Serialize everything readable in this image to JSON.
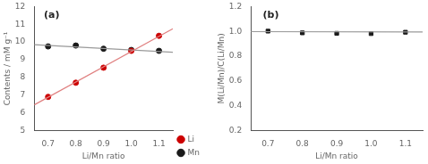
{
  "chart_data": [
    {
      "type": "scatter",
      "annotations": [
        "(a)"
      ],
      "xlabel": "Li/Mn ratio",
      "ylabel": "Contents / mM g⁻¹",
      "xlim": [
        0.65,
        1.15
      ],
      "xticks": [
        0.7,
        0.8,
        0.9,
        {
          "value": 1.0,
          "label": "1.0"
        },
        1.1
      ],
      "ylim": [
        5,
        12
      ],
      "yticks": [
        5,
        6,
        7,
        8,
        9,
        10,
        11,
        12
      ],
      "grid": false,
      "legend": "lower right",
      "series": [
        {
          "type": "line",
          "color": "#e08080",
          "x": [
            0.65,
            1.15
          ],
          "values": [
            6.45,
            10.75
          ]
        },
        {
          "type": "line",
          "color": "#999999",
          "x": [
            0.65,
            1.15
          ],
          "values": [
            9.85,
            9.42
          ]
        },
        {
          "name": "Li",
          "type": "scatter",
          "marker": "circle",
          "color": "#cc0000",
          "x": [
            0.7,
            0.8,
            0.9,
            1.0,
            1.1
          ],
          "values": [
            6.9,
            7.7,
            8.55,
            9.5,
            10.35
          ]
        },
        {
          "name": "Mn",
          "type": "scatter",
          "marker": "circle",
          "color": "#1a1a1a",
          "x": [
            0.7,
            0.8,
            0.9,
            1.0,
            1.1
          ],
          "values": [
            9.75,
            9.8,
            9.62,
            9.55,
            9.5
          ]
        }
      ]
    },
    {
      "type": "scatter",
      "annotations": [
        "(b)"
      ],
      "xlabel": "Li/Mn ratio",
      "ylabel": "M(Li/Mn)/C(Li/Mn)",
      "xlim": [
        0.65,
        1.15
      ],
      "xticks": [
        0.7,
        0.8,
        0.9,
        {
          "value": 1.0,
          "label": "1.0"
        },
        1.1
      ],
      "ylim": [
        0.2,
        1.2
      ],
      "yticks": [
        0.2,
        0.4,
        0.6,
        0.8,
        {
          "value": 1.0,
          "label": "1.0"
        },
        1.2
      ],
      "grid": false,
      "series": [
        {
          "type": "line",
          "color": "#999999",
          "x": [
            0.65,
            1.15
          ],
          "values": [
            0.998,
            0.995
          ]
        },
        {
          "type": "scatter",
          "marker": "square",
          "color": "#1a1a1a",
          "x": [
            0.7,
            0.8,
            0.9,
            1.0,
            1.1
          ],
          "values": [
            1.002,
            0.988,
            0.984,
            0.982,
            0.993
          ]
        }
      ]
    }
  ]
}
